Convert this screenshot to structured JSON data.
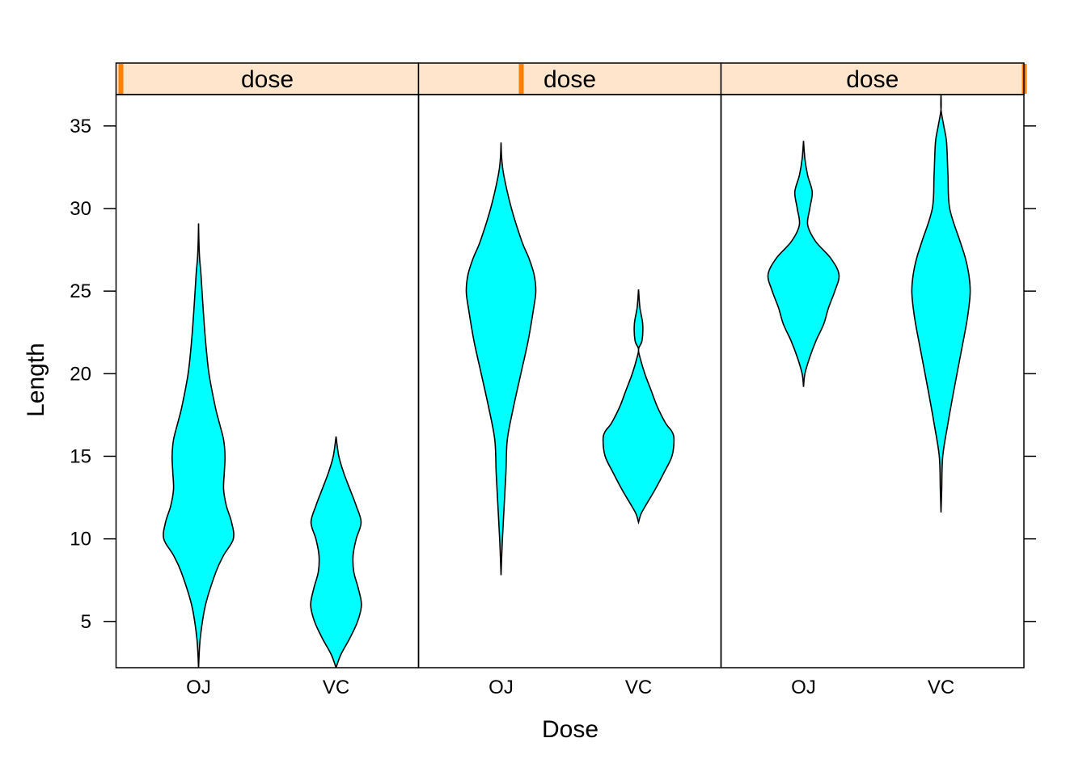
{
  "chart_data": {
    "type": "violin",
    "xlabel": "Dose",
    "ylabel": "Length",
    "ylim": [
      2.2,
      36.9
    ],
    "y_ticks": [
      5,
      10,
      15,
      20,
      25,
      30,
      35
    ],
    "categories": [
      "OJ",
      "VC"
    ],
    "panels": [
      {
        "strip_label": "dose",
        "violins": [
          {
            "category": "OJ",
            "min": 2.2,
            "max": 29.1,
            "profile": [
              [
                2.2,
                0.0
              ],
              [
                4,
                0.05
              ],
              [
                6,
                0.2
              ],
              [
                8,
                0.5
              ],
              [
                9,
                0.72
              ],
              [
                10,
                1.0
              ],
              [
                11,
                0.95
              ],
              [
                12,
                0.8
              ],
              [
                13,
                0.72
              ],
              [
                14,
                0.74
              ],
              [
                15,
                0.76
              ],
              [
                16,
                0.72
              ],
              [
                17,
                0.6
              ],
              [
                18,
                0.48
              ],
              [
                20,
                0.3
              ],
              [
                22,
                0.2
              ],
              [
                24,
                0.13
              ],
              [
                26,
                0.07
              ],
              [
                27,
                0.03
              ],
              [
                28,
                0.01
              ],
              [
                29.1,
                0.0
              ]
            ]
          },
          {
            "category": "VC",
            "min": 2.2,
            "max": 16.2,
            "profile": [
              [
                2.2,
                0.0
              ],
              [
                3,
                0.14
              ],
              [
                4,
                0.4
              ],
              [
                5,
                0.62
              ],
              [
                6,
                0.73
              ],
              [
                7,
                0.64
              ],
              [
                8,
                0.51
              ],
              [
                9,
                0.49
              ],
              [
                10,
                0.58
              ],
              [
                11,
                0.72
              ],
              [
                12,
                0.58
              ],
              [
                13,
                0.4
              ],
              [
                14,
                0.22
              ],
              [
                15,
                0.08
              ],
              [
                16.2,
                0.0
              ]
            ]
          }
        ]
      },
      {
        "strip_label": "dose",
        "violins": [
          {
            "category": "OJ",
            "min": 7.8,
            "max": 34.0,
            "profile": [
              [
                7.8,
                0.0
              ],
              [
                9,
                0.02
              ],
              [
                10,
                0.04
              ],
              [
                12,
                0.09
              ],
              [
                14,
                0.14
              ],
              [
                16,
                0.18
              ],
              [
                18,
                0.36
              ],
              [
                20,
                0.57
              ],
              [
                22,
                0.78
              ],
              [
                24,
                0.94
              ],
              [
                25,
                1.0
              ],
              [
                26,
                0.95
              ],
              [
                27,
                0.8
              ],
              [
                28,
                0.6
              ],
              [
                30,
                0.3
              ],
              [
                32,
                0.08
              ],
              [
                33,
                0.02
              ],
              [
                34.0,
                0.0
              ]
            ]
          },
          {
            "category": "VC",
            "min": 11.0,
            "max": 25.1,
            "profile": [
              [
                11.0,
                0.0
              ],
              [
                11.5,
                0.07
              ],
              [
                12,
                0.2
              ],
              [
                13,
                0.48
              ],
              [
                14,
                0.73
              ],
              [
                15,
                0.96
              ],
              [
                16,
                1.02
              ],
              [
                16.5,
                0.96
              ],
              [
                17,
                0.78
              ],
              [
                18,
                0.54
              ],
              [
                19,
                0.36
              ],
              [
                20,
                0.18
              ],
              [
                21,
                0.04
              ],
              [
                21.5,
                0.0
              ],
              [
                22,
                0.1
              ],
              [
                23,
                0.12
              ],
              [
                24,
                0.04
              ],
              [
                25.1,
                0.0
              ]
            ]
          }
        ]
      },
      {
        "strip_label": "dose",
        "violins": [
          {
            "category": "OJ",
            "min": 19.2,
            "max": 34.1,
            "profile": [
              [
                19.2,
                0.0
              ],
              [
                20,
                0.04
              ],
              [
                21,
                0.18
              ],
              [
                22,
                0.36
              ],
              [
                23,
                0.58
              ],
              [
                24,
                0.72
              ],
              [
                25,
                0.9
              ],
              [
                26,
                1.02
              ],
              [
                27,
                0.78
              ],
              [
                28,
                0.35
              ],
              [
                29,
                0.12
              ],
              [
                30,
                0.18
              ],
              [
                31,
                0.25
              ],
              [
                32,
                0.12
              ],
              [
                33,
                0.04
              ],
              [
                34.1,
                0.0
              ]
            ]
          },
          {
            "category": "VC",
            "min": 11.6,
            "max": 36.9,
            "profile": [
              [
                11.6,
                0.0
              ],
              [
                13,
                0.02
              ],
              [
                15,
                0.05
              ],
              [
                17,
                0.2
              ],
              [
                19,
                0.37
              ],
              [
                21,
                0.55
              ],
              [
                23,
                0.73
              ],
              [
                24,
                0.8
              ],
              [
                25,
                0.84
              ],
              [
                26,
                0.8
              ],
              [
                27,
                0.7
              ],
              [
                28,
                0.55
              ],
              [
                30,
                0.25
              ],
              [
                32,
                0.2
              ],
              [
                34,
                0.16
              ],
              [
                35,
                0.08
              ],
              [
                36,
                0.0
              ],
              [
                36.9,
                0.0
              ]
            ]
          }
        ]
      }
    ]
  },
  "colors": {
    "violin_fill": "#00ffff",
    "strip_fill": "#ffe5cc",
    "strip_marker": "#ff7f00",
    "line": "#000000"
  }
}
